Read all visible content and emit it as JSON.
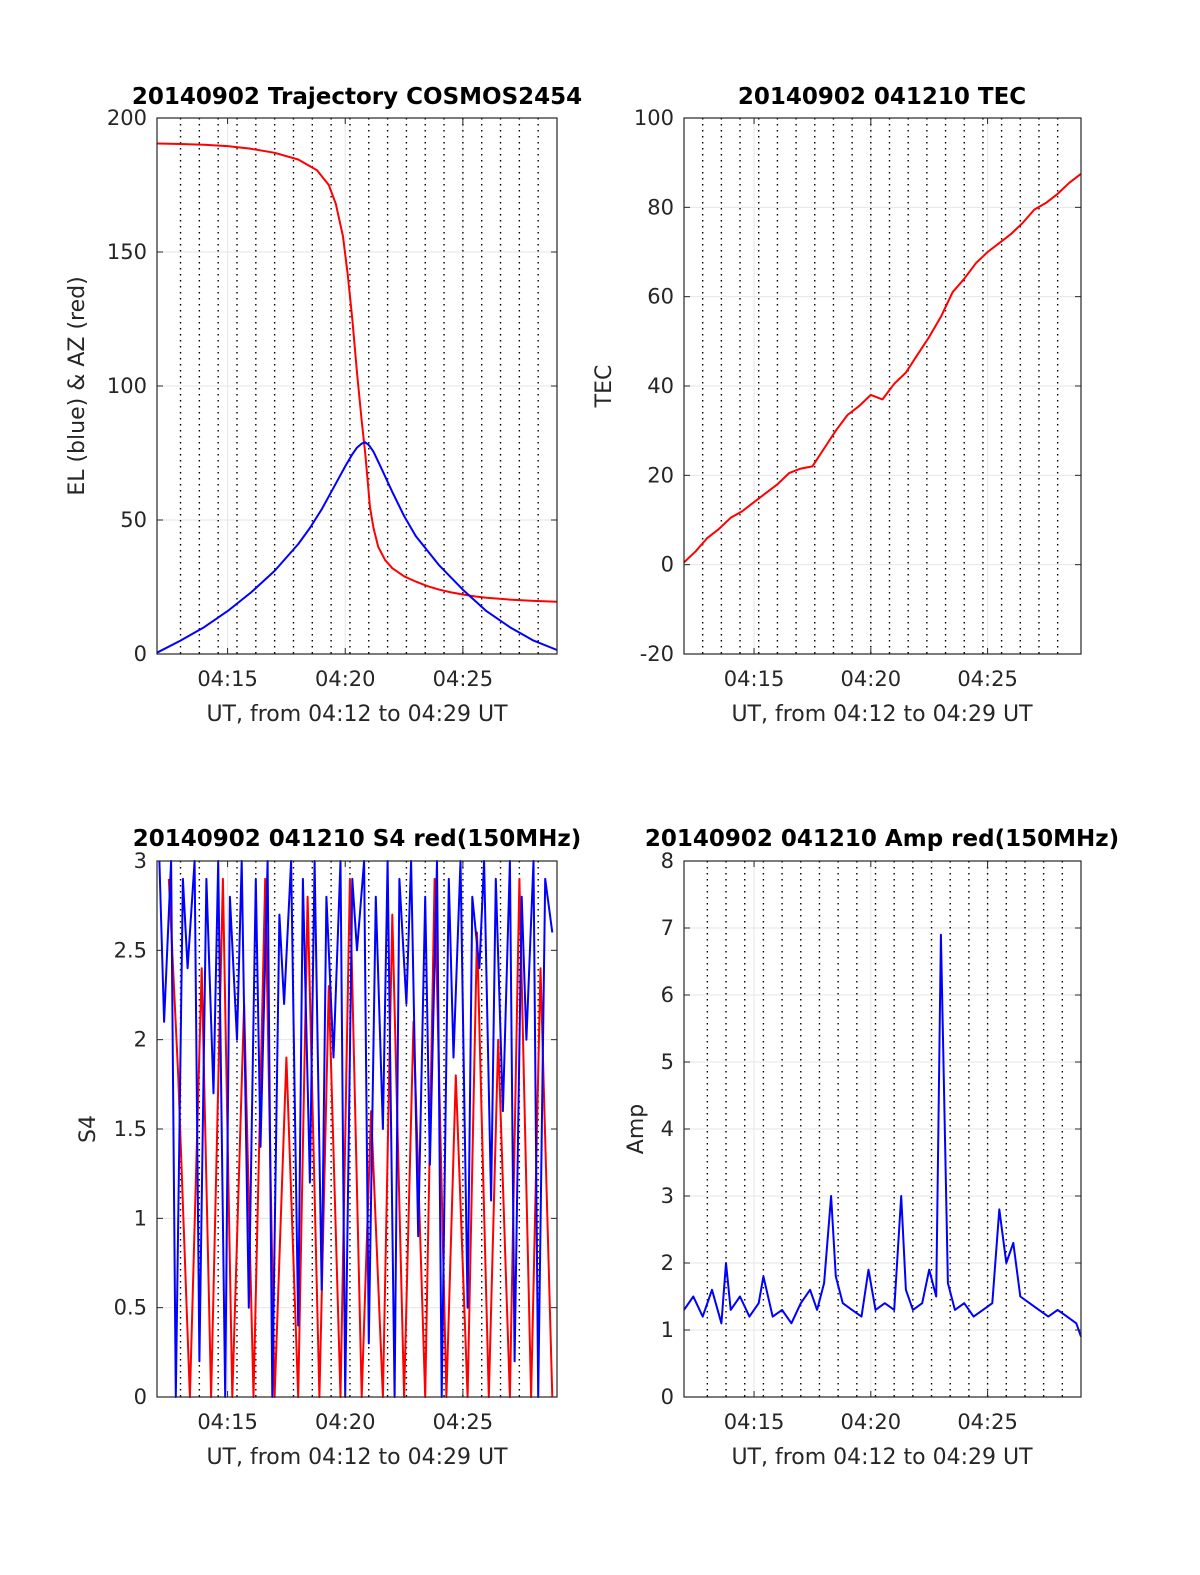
{
  "chart_data": [
    {
      "type": "line",
      "title": "20140902 Trajectory COSMOS2454",
      "xlabel": "UT, from 04:12 to 04:29 UT",
      "ylabel": "EL (blue) & AZ (red)",
      "xlim": [
        12.0,
        29.0
      ],
      "ylim": [
        0,
        200
      ],
      "xticks": [
        15,
        20,
        25
      ],
      "xtick_labels": [
        "04:15",
        "04:20",
        "04:25"
      ],
      "yticks": [
        0,
        50,
        100,
        150,
        200
      ],
      "ytick_labels": [
        "0",
        "50",
        "100",
        "150",
        "200"
      ],
      "vlines": [
        13,
        13.8,
        14.6,
        15.4,
        16.2,
        17,
        17.8,
        18.6,
        19.4,
        20.2,
        21,
        21.8,
        22.6,
        23.4,
        24.2,
        25,
        25.8,
        26.6,
        27.4,
        28.2
      ],
      "series": [
        {
          "name": "AZ",
          "color": "#ff0000",
          "x": [
            12.0,
            13.0,
            14.0,
            15.0,
            16.0,
            17.0,
            18.0,
            18.8,
            19.3,
            19.6,
            19.9,
            20.1,
            20.3,
            20.5,
            20.7,
            20.85,
            20.95,
            21.05,
            21.2,
            21.4,
            21.7,
            22.0,
            22.5,
            23.0,
            23.5,
            24.0,
            24.5,
            25.0,
            25.5,
            26.0,
            27.0,
            28.0,
            29.0
          ],
          "values": [
            190.5,
            190.3,
            190.0,
            189.5,
            188.5,
            187.0,
            184.5,
            180.5,
            175.0,
            168.0,
            156.0,
            142.0,
            125.0,
            105.0,
            87.0,
            75.0,
            65.0,
            55.0,
            47.0,
            40.0,
            35.0,
            32.0,
            29.0,
            27.0,
            25.3,
            24.0,
            23.0,
            22.2,
            21.5,
            21.0,
            20.3,
            19.8,
            19.5
          ]
        },
        {
          "name": "EL",
          "color": "#0000ff",
          "x": [
            12.0,
            13.0,
            14.0,
            15.0,
            16.0,
            17.0,
            18.0,
            18.5,
            19.0,
            19.5,
            20.0,
            20.3,
            20.5,
            20.7,
            20.85,
            21.0,
            21.2,
            21.5,
            22.0,
            22.5,
            23.0,
            24.0,
            25.0,
            26.0,
            27.0,
            28.0,
            29.0
          ],
          "values": [
            0.5,
            5.0,
            10.0,
            16.0,
            23.0,
            31.0,
            41.0,
            47.0,
            54.0,
            62.0,
            70.0,
            74.5,
            77.0,
            78.5,
            79.0,
            78.0,
            75.5,
            70.0,
            60.5,
            51.5,
            44.0,
            33.0,
            24.0,
            16.0,
            10.0,
            5.0,
            1.5
          ]
        }
      ]
    },
    {
      "type": "line",
      "title": "20140902 041210 TEC",
      "xlabel": "UT, from 04:12 to 04:29 UT",
      "ylabel": "TEC",
      "xlim": [
        12.0,
        29.0
      ],
      "ylim": [
        -20,
        100
      ],
      "xticks": [
        15,
        20,
        25
      ],
      "xtick_labels": [
        "04:15",
        "04:20",
        "04:25"
      ],
      "yticks": [
        -20,
        0,
        20,
        40,
        60,
        80,
        100
      ],
      "ytick_labels": [
        "-20",
        "0",
        "20",
        "40",
        "60",
        "80",
        "100"
      ],
      "vlines": [
        12.8,
        13.6,
        14.4,
        15.2,
        16.0,
        16.8,
        17.6,
        18.4,
        19.2,
        20.0,
        20.8,
        21.6,
        22.4,
        23.2,
        24.0,
        24.8,
        25.6,
        26.4,
        27.2,
        28.0
      ],
      "series": [
        {
          "name": "TEC",
          "color": "#ff0000",
          "x": [
            12.0,
            12.5,
            13.0,
            13.5,
            14.0,
            14.5,
            15.0,
            15.5,
            16.0,
            16.5,
            17.0,
            17.5,
            18.0,
            18.5,
            19.0,
            19.5,
            20.0,
            20.5,
            21.0,
            21.5,
            22.0,
            22.5,
            23.0,
            23.5,
            24.0,
            24.5,
            25.0,
            25.5,
            26.0,
            26.5,
            27.0,
            27.5,
            28.0,
            28.5,
            29.0
          ],
          "values": [
            0.5,
            3.0,
            6.0,
            8.0,
            10.5,
            12.0,
            14.0,
            16.0,
            18.0,
            20.5,
            21.5,
            22.0,
            26.0,
            30.0,
            33.5,
            35.5,
            38.0,
            37.0,
            40.5,
            43.0,
            47.0,
            51.0,
            55.5,
            61.0,
            64.0,
            67.5,
            70.0,
            72.0,
            74.0,
            76.5,
            79.5,
            81.0,
            83.0,
            85.5,
            87.5
          ]
        }
      ]
    },
    {
      "type": "line",
      "title": "20140902 041210 S4 red(150MHz)",
      "xlabel": "UT, from 04:12 to 04:29 UT",
      "ylabel": "S4",
      "xlim": [
        12.0,
        29.0
      ],
      "ylim": [
        0,
        3
      ],
      "xticks": [
        15,
        20,
        25
      ],
      "xtick_labels": [
        "04:15",
        "04:20",
        "04:25"
      ],
      "yticks": [
        0,
        0.5,
        1,
        1.5,
        2,
        2.5,
        3
      ],
      "ytick_labels": [
        "0",
        "0.5",
        "1",
        "1.5",
        "2",
        "2.5",
        "3"
      ],
      "vlines": [
        13,
        13.8,
        14.6,
        15.4,
        16.2,
        17,
        17.8,
        18.6,
        19.4,
        20.2,
        21,
        21.8,
        22.6,
        23.4,
        24.2,
        25,
        25.8,
        26.6,
        27.4,
        28.2
      ],
      "series": [
        {
          "name": "S4 red",
          "color": "#ff0000",
          "x": [
            12.5,
            12.9,
            13.4,
            13.9,
            14.3,
            14.8,
            15.2,
            15.7,
            16.1,
            16.6,
            17.0,
            17.5,
            18.0,
            18.4,
            18.9,
            19.3,
            19.8,
            20.2,
            20.7,
            21.1,
            21.6,
            22.0,
            22.5,
            22.9,
            23.4,
            23.8,
            24.3,
            24.7,
            25.2,
            25.6,
            26.1,
            26.5,
            27.0,
            27.4,
            27.9,
            28.3,
            28.8
          ],
          "values": [
            2.9,
            1.8,
            0,
            2.4,
            0,
            2.9,
            0,
            2.2,
            0,
            2.9,
            0,
            1.9,
            0,
            2.8,
            0,
            2.3,
            0,
            2.9,
            0,
            1.6,
            0,
            2.7,
            0,
            2.1,
            0,
            2.9,
            0,
            1.8,
            0,
            2.6,
            0,
            2.0,
            0,
            2.9,
            0,
            2.4,
            0
          ]
        },
        {
          "name": "S4 blue",
          "color": "#0000ff",
          "x": [
            12.1,
            12.3,
            12.6,
            12.8,
            13.1,
            13.3,
            13.6,
            13.8,
            14.1,
            14.4,
            14.6,
            14.9,
            15.1,
            15.4,
            15.6,
            15.9,
            16.2,
            16.4,
            16.7,
            16.9,
            17.2,
            17.4,
            17.7,
            18.0,
            18.2,
            18.5,
            18.7,
            19.0,
            19.2,
            19.5,
            19.8,
            20.0,
            20.3,
            20.5,
            20.8,
            21.0,
            21.3,
            21.6,
            21.8,
            22.1,
            22.3,
            22.6,
            22.8,
            23.1,
            23.4,
            23.6,
            23.9,
            24.1,
            24.4,
            24.6,
            24.9,
            25.2,
            25.4,
            25.7,
            25.9,
            26.2,
            26.4,
            26.7,
            27.0,
            27.2,
            27.5,
            27.7,
            28.0,
            28.2,
            28.5,
            28.8
          ],
          "values": [
            3,
            2.1,
            3,
            0,
            2.9,
            2.4,
            3,
            0.2,
            2.9,
            1.7,
            3,
            0,
            2.8,
            2.0,
            3,
            0.5,
            2.9,
            1.4,
            3,
            0,
            2.7,
            2.2,
            3,
            0.4,
            2.9,
            1.2,
            3,
            0.6,
            2.8,
            1.9,
            3,
            0,
            2.9,
            2.5,
            3,
            0.3,
            2.8,
            1.5,
            3,
            0,
            2.9,
            2.2,
            3,
            0.9,
            2.8,
            1.3,
            3,
            0,
            2.9,
            1.9,
            3,
            0.5,
            2.8,
            2.4,
            3,
            1.1,
            2.9,
            1.6,
            3,
            0.2,
            2.8,
            2.0,
            3,
            0,
            2.9,
            2.6
          ]
        }
      ]
    },
    {
      "type": "line",
      "title": "20140902 041210 Amp red(150MHz)",
      "xlabel": "UT, from 04:12 to 04:29 UT",
      "ylabel": "Amp",
      "xlim": [
        12.0,
        29.0
      ],
      "ylim": [
        0,
        8
      ],
      "xticks": [
        15,
        20,
        25
      ],
      "xtick_labels": [
        "04:15",
        "04:20",
        "04:25"
      ],
      "yticks": [
        0,
        1,
        2,
        3,
        4,
        5,
        6,
        7,
        8
      ],
      "ytick_labels": [
        "0",
        "1",
        "2",
        "3",
        "4",
        "5",
        "6",
        "7",
        "8"
      ],
      "vlines": [
        13,
        13.8,
        14.6,
        15.4,
        16.2,
        17,
        17.8,
        18.6,
        19.4,
        20.2,
        21,
        21.8,
        22.6,
        23.4,
        24.2,
        25,
        25.8,
        26.6,
        27.4,
        28.2
      ],
      "series": [
        {
          "name": "Amp",
          "color": "#0000ff",
          "x": [
            12.0,
            12.4,
            12.8,
            13.2,
            13.6,
            13.8,
            14.0,
            14.4,
            14.8,
            15.2,
            15.4,
            15.8,
            16.2,
            16.6,
            17.0,
            17.4,
            17.7,
            18.0,
            18.3,
            18.5,
            18.8,
            19.2,
            19.6,
            19.9,
            20.2,
            20.6,
            21.0,
            21.3,
            21.5,
            21.8,
            22.2,
            22.5,
            22.8,
            23.0,
            23.1,
            23.3,
            23.6,
            24.0,
            24.4,
            24.8,
            25.2,
            25.5,
            25.8,
            26.1,
            26.4,
            26.8,
            27.2,
            27.6,
            28.0,
            28.4,
            28.8,
            29.0
          ],
          "values": [
            1.3,
            1.5,
            1.2,
            1.6,
            1.1,
            2.0,
            1.3,
            1.5,
            1.2,
            1.4,
            1.8,
            1.2,
            1.3,
            1.1,
            1.4,
            1.6,
            1.3,
            1.7,
            3.0,
            1.8,
            1.4,
            1.3,
            1.2,
            1.9,
            1.3,
            1.4,
            1.3,
            3.0,
            1.6,
            1.3,
            1.4,
            1.9,
            1.5,
            6.9,
            5.2,
            1.7,
            1.3,
            1.4,
            1.2,
            1.3,
            1.4,
            2.8,
            2.0,
            2.3,
            1.5,
            1.4,
            1.3,
            1.2,
            1.3,
            1.2,
            1.1,
            0.9
          ]
        }
      ]
    }
  ]
}
